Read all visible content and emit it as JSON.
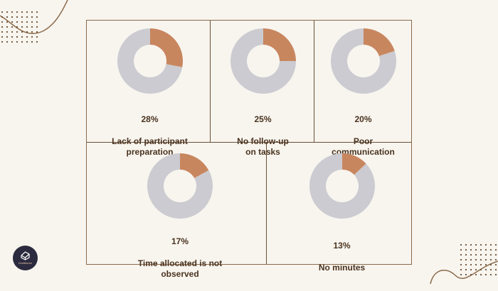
{
  "chart_data": [
    {
      "type": "pie",
      "value": 28,
      "value_label": "28%",
      "label": "Lack of participant\npreparation"
    },
    {
      "type": "pie",
      "value": 25,
      "value_label": "25%",
      "label": "No follow-up\non tasks"
    },
    {
      "type": "pie",
      "value": 20,
      "value_label": "20%",
      "label": "Poor\ncommunication"
    },
    {
      "type": "pie",
      "value": 17,
      "value_label": "17%",
      "label": "Time allocated is  not\nobserved"
    },
    {
      "type": "pie",
      "value": 13,
      "value_label": "13%",
      "label": "No minutes"
    }
  ],
  "colors": {
    "highlight": "#c8865f",
    "remainder": "#cbcbd1",
    "text": "#4a331f",
    "background": "#f8f5ef"
  },
  "logo": {
    "text": "Drafthorse"
  }
}
